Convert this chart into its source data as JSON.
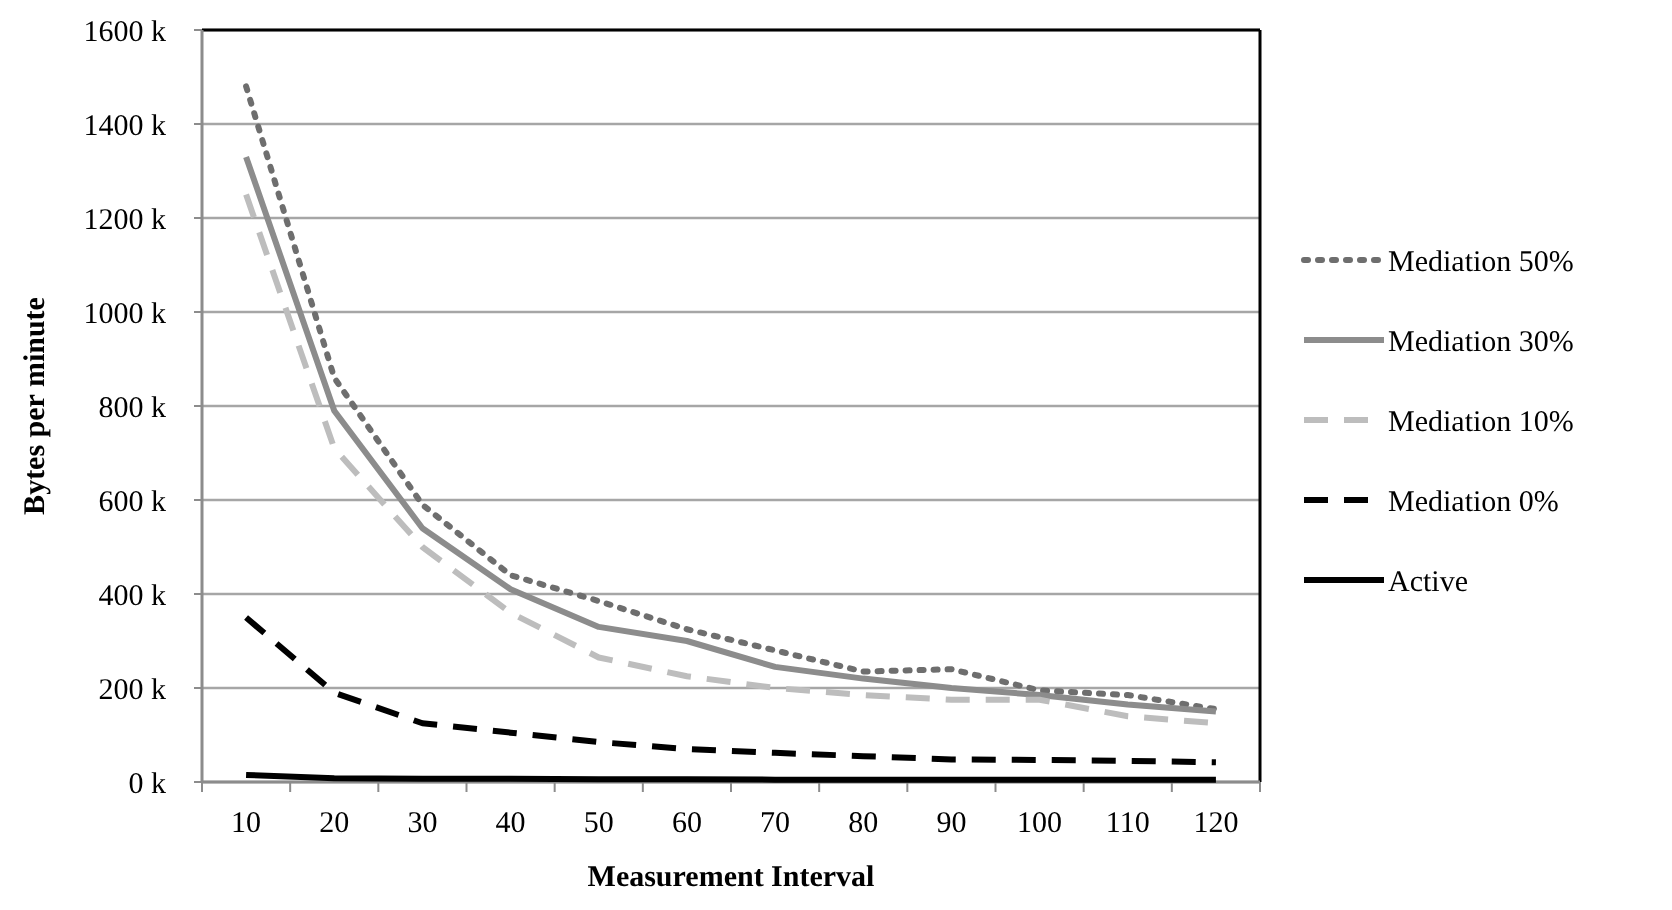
{
  "chart_data": {
    "type": "line",
    "xlabel": "Measurement Interval",
    "ylabel": "Bytes per minute",
    "categories": [
      "10",
      "20",
      "30",
      "40",
      "50",
      "60",
      "70",
      "80",
      "90",
      "100",
      "110",
      "120"
    ],
    "ylim": [
      0,
      1600
    ],
    "yticks": [
      {
        "value": 0,
        "label": "0 k"
      },
      {
        "value": 200,
        "label": "200 k"
      },
      {
        "value": 400,
        "label": "400 k"
      },
      {
        "value": 600,
        "label": "600 k"
      },
      {
        "value": 800,
        "label": "800 k"
      },
      {
        "value": 1000,
        "label": "1000 k"
      },
      {
        "value": 1200,
        "label": "1200 k"
      },
      {
        "value": 1400,
        "label": "1400 k"
      },
      {
        "value": 1600,
        "label": "1600 k"
      }
    ],
    "grid": "y",
    "legend": "right",
    "series": [
      {
        "name": "Mediation 50%",
        "color": "#6e6e6e",
        "line_style": "dotted",
        "values": [
          1480,
          860,
          590,
          440,
          385,
          325,
          280,
          235,
          240,
          195,
          185,
          155
        ]
      },
      {
        "name": "Mediation 30%",
        "color": "#8c8c8c",
        "line_style": "solid",
        "values": [
          1330,
          790,
          540,
          410,
          330,
          300,
          245,
          220,
          200,
          185,
          165,
          150
        ]
      },
      {
        "name": "Mediation 10%",
        "color": "#bdbdbd",
        "line_style": "dashed",
        "values": [
          1250,
          710,
          500,
          360,
          265,
          225,
          200,
          185,
          175,
          175,
          140,
          125
        ]
      },
      {
        "name": "Mediation 0%",
        "color": "#000000",
        "line_style": "dashed",
        "values": [
          350,
          190,
          125,
          105,
          85,
          70,
          62,
          55,
          48,
          47,
          45,
          42
        ]
      },
      {
        "name": "Active",
        "color": "#000000",
        "line_style": "solid",
        "values": [
          15,
          8,
          7,
          7,
          6,
          6,
          5,
          5,
          5,
          5,
          5,
          5
        ]
      }
    ]
  }
}
